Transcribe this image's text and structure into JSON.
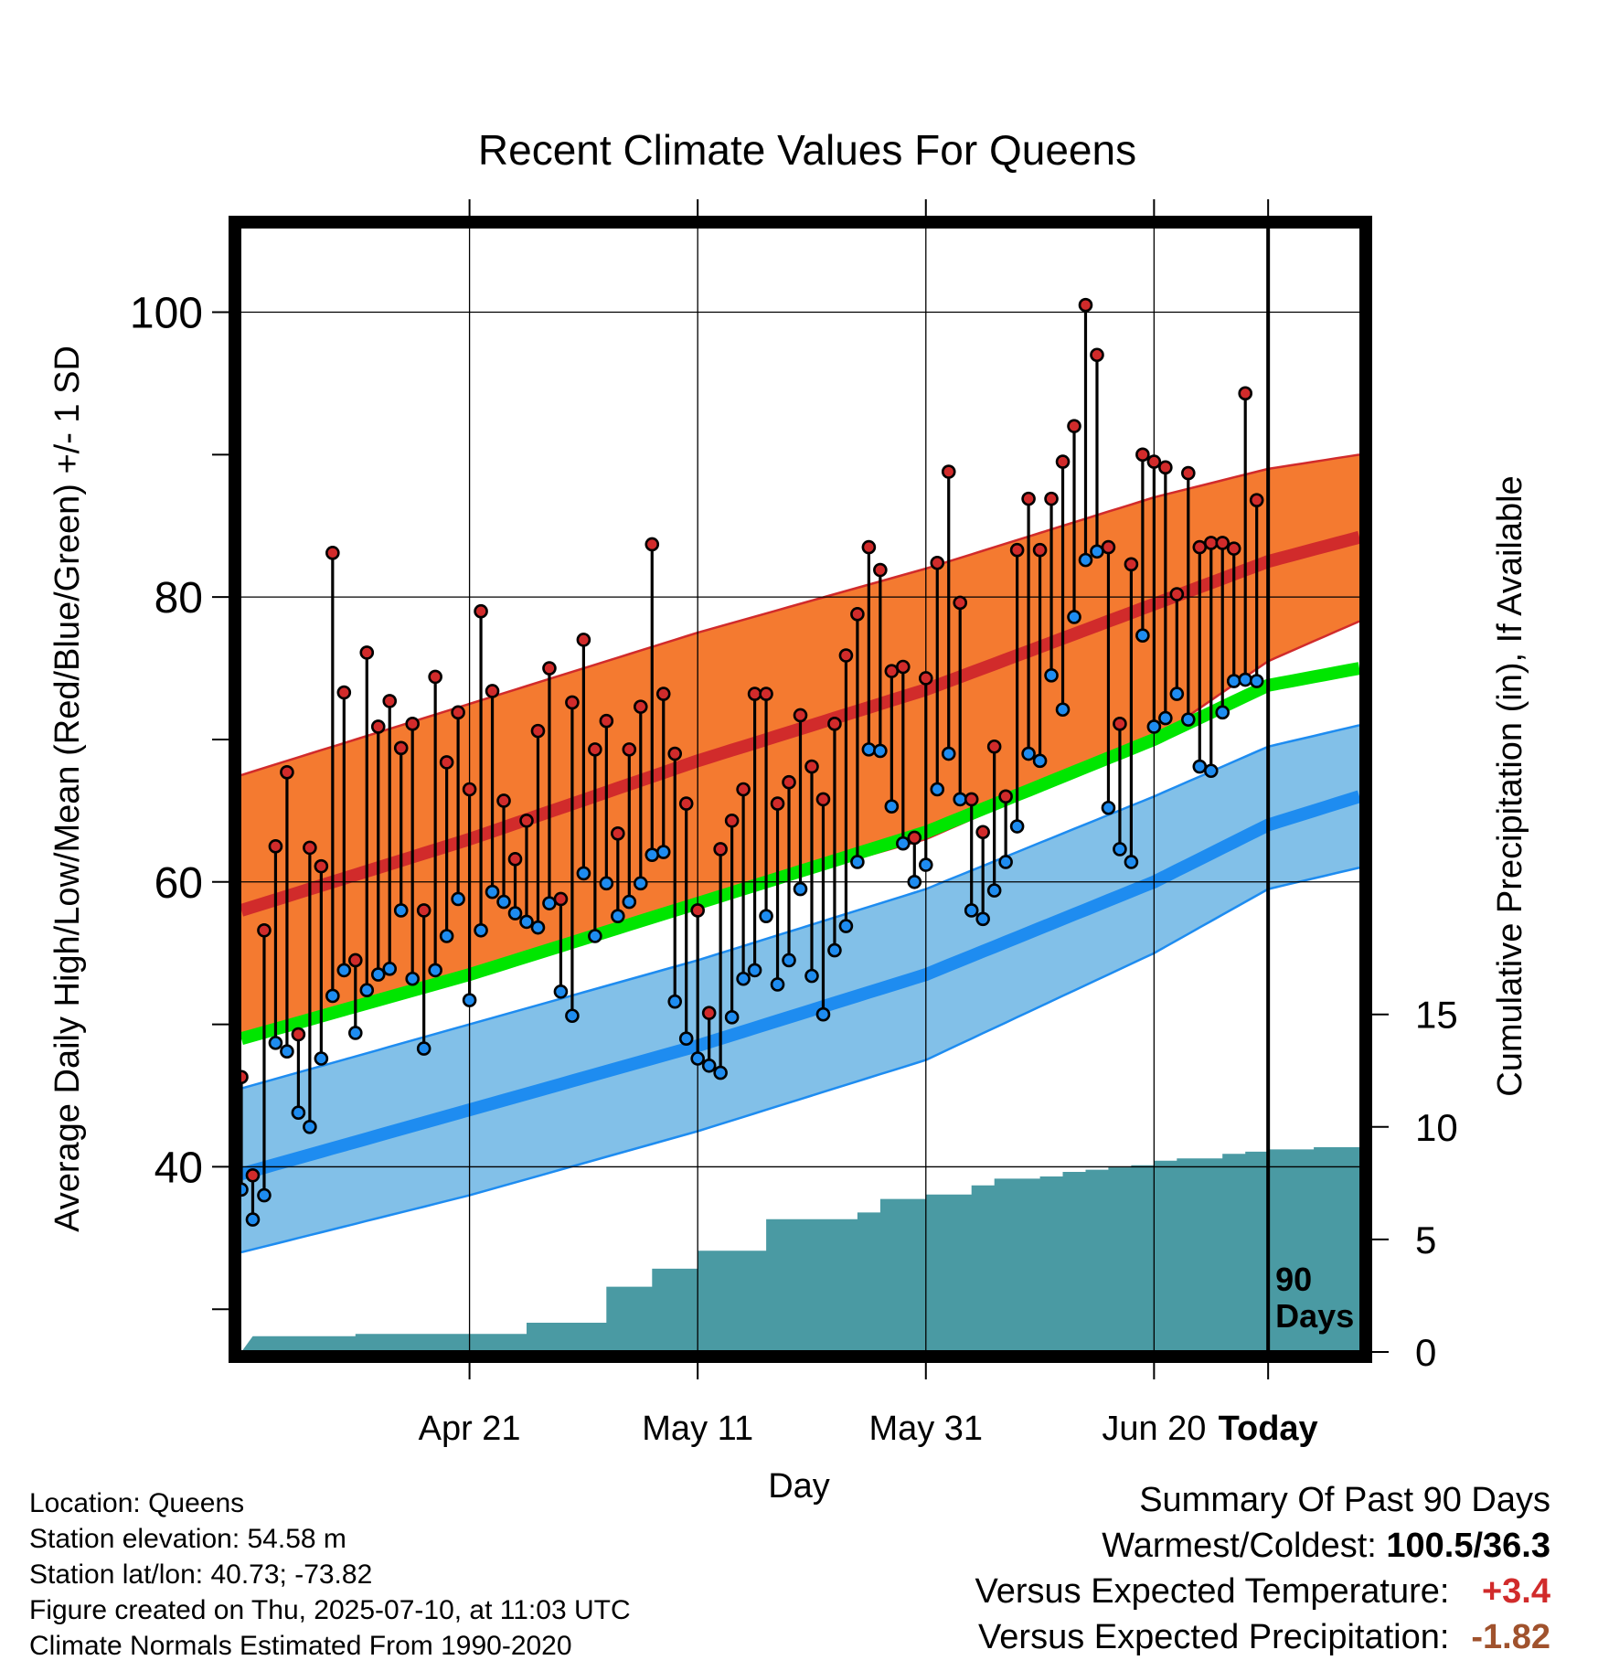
{
  "chart_data": {
    "type": "line",
    "title": "Recent Climate Values For Queens",
    "xlabel": "Day",
    "ylabel": "Average Daily High/Low/Mean (Red/Blue/Green) +/- 1 SD",
    "y2label": "Cumulative Precipitation (in), If Available",
    "x_range_days": [
      -90,
      8
    ],
    "ylim": [
      27,
      106
    ],
    "y2lim": [
      0,
      50
    ],
    "x_ticks": [
      {
        "day": -70,
        "label": "Apr 21"
      },
      {
        "day": -50,
        "label": "May 11"
      },
      {
        "day": -30,
        "label": "May 31"
      },
      {
        "day": -10,
        "label": "Jun 20"
      },
      {
        "day": 0,
        "label": "Today"
      }
    ],
    "y_ticks_labeled": [
      40,
      60,
      80,
      100
    ],
    "y_ticks_minor": [
      30,
      50,
      70,
      90
    ],
    "y2_ticks": [
      0,
      5,
      10,
      15
    ],
    "today_marker": {
      "day": 0,
      "label": "90 Days"
    },
    "grid": true,
    "colors": {
      "high_band": "#f47a30",
      "high_line": "#d12b2b",
      "low_band": "#82c0e8",
      "low_line": "#1e8cf0",
      "mean_line": "#00e600",
      "precip": "#4a9aa3",
      "high_point": "#d12b2b",
      "low_point": "#1e8cf0"
    },
    "normal_high": {
      "x": [
        -90,
        -70,
        -50,
        -30,
        -10,
        0,
        8
      ],
      "mean": [
        58,
        63,
        68.5,
        73.5,
        79.5,
        82.5,
        84.2
      ],
      "minus_sd": [
        49,
        53.5,
        58.5,
        63,
        70,
        75.5,
        78.3
      ],
      "plus_sd": [
        67.5,
        72.5,
        77.5,
        82,
        87,
        89,
        90
      ]
    },
    "normal_low": {
      "x": [
        -90,
        -70,
        -50,
        -30,
        -10,
        0,
        8
      ],
      "mean": [
        39.5,
        44,
        48.5,
        53.5,
        60,
        64,
        66
      ],
      "minus_sd": [
        34,
        38,
        42.5,
        47.5,
        55,
        59.5,
        61
      ],
      "plus_sd": [
        45.5,
        50,
        54.5,
        59.5,
        66,
        69.5,
        71
      ]
    },
    "normal_mean": {
      "x": [
        -90,
        -70,
        -50,
        -30,
        -10,
        0,
        8
      ],
      "values": [
        49,
        53.5,
        58.5,
        63.5,
        70,
        73.8,
        75
      ]
    },
    "daily": {
      "high": [
        46.3,
        39.4,
        56.6,
        62.5,
        67.7,
        49.3,
        62.4,
        61.1,
        83.1,
        73.3,
        54.5,
        76.1,
        70.9,
        72.7,
        69.4,
        71.1,
        58.0,
        74.4,
        68.4,
        71.9,
        66.5,
        79.0,
        73.4,
        65.7,
        61.6,
        64.3,
        70.6,
        75.0,
        58.8,
        72.6,
        77.0,
        69.3,
        71.3,
        63.4,
        69.3,
        72.3,
        83.7,
        73.2,
        69.0,
        65.5,
        58.0,
        50.8,
        62.3,
        64.3,
        66.5,
        73.2,
        73.2,
        65.5,
        67.0,
        71.7,
        68.1,
        65.8,
        71.1,
        75.9,
        78.8,
        83.5,
        81.9,
        74.8,
        75.1,
        63.1,
        74.3,
        82.4,
        88.8,
        79.6,
        65.8,
        63.5,
        69.5,
        66.0,
        83.3,
        86.9,
        83.3,
        86.9,
        89.5,
        92.0,
        100.5,
        97.0,
        83.5,
        71.1,
        82.3,
        90.0,
        89.5,
        89.1,
        80.2,
        88.7,
        83.5,
        83.8,
        83.8,
        83.4,
        94.3,
        86.8
      ],
      "low": [
        38.4,
        36.3,
        38.0,
        48.7,
        48.1,
        43.8,
        42.8,
        47.6,
        52.0,
        53.8,
        49.4,
        52.4,
        53.5,
        53.9,
        58.0,
        53.2,
        48.3,
        53.8,
        56.2,
        58.8,
        51.7,
        56.6,
        59.3,
        58.6,
        57.8,
        57.2,
        56.8,
        58.5,
        52.3,
        50.6,
        60.6,
        56.2,
        59.9,
        57.6,
        58.6,
        59.9,
        61.9,
        62.1,
        51.6,
        49.0,
        47.6,
        47.1,
        46.6,
        50.5,
        53.2,
        53.8,
        57.6,
        52.8,
        54.5,
        59.5,
        53.4,
        50.7,
        55.2,
        56.9,
        61.4,
        69.3,
        69.2,
        65.3,
        62.7,
        60.0,
        61.2,
        66.5,
        69.0,
        65.8,
        58.0,
        57.4,
        59.4,
        61.4,
        63.9,
        69.0,
        68.5,
        74.5,
        72.1,
        78.6,
        82.6,
        83.2,
        65.2,
        62.3,
        61.4,
        77.3,
        70.9,
        71.5,
        73.2,
        71.4,
        68.1,
        67.8,
        71.9,
        74.1,
        74.2,
        74.1
      ]
    },
    "precip_cumulative": {
      "x": [
        -89,
        -85,
        -80,
        -75,
        -70,
        -65,
        -60,
        -58,
        -56,
        -54,
        -52,
        -50,
        -48,
        -46,
        -44,
        -42,
        -40,
        -38,
        -36,
        -34,
        -32,
        -30,
        -28,
        -26,
        -24,
        -22,
        -20,
        -18,
        -16,
        -14,
        -12,
        -10,
        -8,
        -6,
        -4,
        -2,
        0,
        2,
        4,
        6,
        8
      ],
      "values": [
        0.7,
        0.7,
        0.8,
        0.8,
        0.8,
        1.3,
        1.3,
        2.9,
        2.9,
        3.7,
        3.7,
        4.5,
        4.5,
        4.5,
        5.9,
        5.9,
        5.9,
        5.9,
        6.2,
        6.8,
        6.8,
        7.0,
        7.0,
        7.4,
        7.7,
        7.7,
        7.8,
        8.0,
        8.1,
        8.2,
        8.3,
        8.5,
        8.6,
        8.6,
        8.8,
        8.9,
        9.0,
        9.0,
        9.1,
        9.1,
        9.2
      ]
    }
  },
  "info": {
    "location": "Location: Queens",
    "elevation": "Station elevation: 54.58 m",
    "latlon": "Station lat/lon: 40.73; -73.82",
    "created": "Figure created on Thu, 2025-07-10, at 11:03 UTC",
    "normals": "Climate Normals Estimated From 1990-2020"
  },
  "summary": {
    "title": "Summary Of Past 90 Days",
    "warmest_coldest_label": "Warmest/Coldest:",
    "warmest_coldest_value": "100.5/36.3",
    "temp_label": "Versus Expected Temperature:",
    "temp_value": "+3.4",
    "temp_color": "#d12b2b",
    "precip_label": "Versus Expected Precipitation:",
    "precip_value": "-1.82",
    "precip_color": "#a0522d"
  }
}
